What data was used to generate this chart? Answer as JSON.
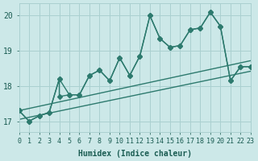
{
  "xlabel": "Humidex (Indice chaleur)",
  "background_color": "#cce8e8",
  "grid_color": "#aad0d0",
  "line_color": "#2d7a6e",
  "xlim": [
    0,
    23
  ],
  "ylim": [
    16.7,
    20.35
  ],
  "xticks": [
    0,
    1,
    2,
    3,
    4,
    5,
    6,
    7,
    8,
    9,
    10,
    11,
    12,
    13,
    14,
    15,
    16,
    17,
    18,
    19,
    20,
    21,
    22,
    23
  ],
  "yticks": [
    17,
    18,
    19,
    20
  ],
  "series1_x": [
    0,
    1,
    2,
    3,
    4,
    4,
    5,
    6,
    7,
    8,
    9,
    10,
    11,
    12,
    13,
    14,
    15,
    16,
    17,
    18,
    19,
    20,
    21,
    22,
    23
  ],
  "series1_y": [
    17.3,
    17.0,
    17.15,
    17.25,
    18.2,
    17.7,
    17.75,
    17.75,
    18.3,
    18.45,
    18.15,
    18.8,
    18.3,
    18.85,
    20.0,
    19.35,
    19.1,
    19.15,
    19.6,
    19.65,
    20.1,
    19.7,
    18.15,
    18.55,
    18.55
  ],
  "series2_x": [
    0,
    1,
    2,
    3,
    4,
    5,
    6,
    7,
    8,
    9,
    10,
    11,
    12,
    13,
    14,
    15,
    16,
    17,
    18,
    19,
    20,
    21,
    22,
    23
  ],
  "series2_y": [
    17.3,
    17.0,
    17.15,
    17.25,
    18.2,
    17.75,
    17.75,
    18.3,
    18.45,
    18.15,
    18.8,
    18.3,
    18.85,
    20.0,
    19.35,
    19.1,
    19.15,
    19.6,
    19.65,
    20.1,
    19.7,
    18.15,
    18.55,
    18.55
  ],
  "trend1_x": [
    0,
    23
  ],
  "trend1_y": [
    17.05,
    18.42
  ],
  "trend2_x": [
    0,
    23
  ],
  "trend2_y": [
    17.3,
    18.72
  ],
  "marker_size": 3,
  "line_width": 1.0,
  "font_color": "#1a5c52"
}
